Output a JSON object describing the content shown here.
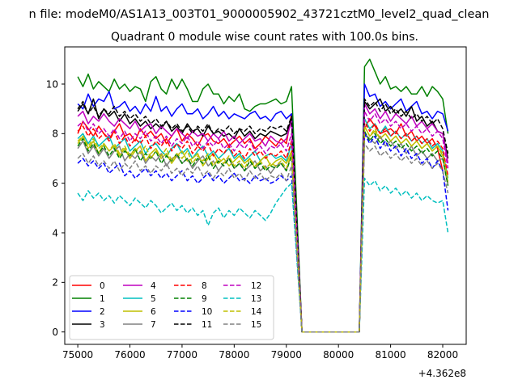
{
  "chart_data": {
    "type": "line",
    "suptitle": "n file: modeM0/AS1A13_003T01_9000005902_43721cztM0_level2_quad_clean",
    "title": "Quadrant 0 module wise count rates with 100.0s bins.",
    "xlabel": "",
    "ylabel": "",
    "x_offset_label": "+4.362e8",
    "xlim": [
      74750,
      82450
    ],
    "ylim": [
      -0.5,
      11.5
    ],
    "xticks": [
      75000,
      76000,
      77000,
      78000,
      79000,
      80000,
      81000,
      82000
    ],
    "xtick_labels": [
      "75000",
      "76000",
      "77000",
      "78000",
      "79000",
      "80000",
      "81000",
      "82000"
    ],
    "yticks": [
      0,
      2,
      4,
      6,
      8,
      10
    ],
    "ytick_labels": [
      "0",
      "2",
      "4",
      "6",
      "8",
      "10"
    ],
    "grid": false,
    "legend": {
      "placement": "lower-left",
      "columns": 4
    },
    "x_start": 75000,
    "x_step": 100,
    "gap": {
      "from": 79300,
      "to": 80400
    },
    "series": [
      {
        "name": "0",
        "color": "#ff0000",
        "dash": "solid",
        "pre": [
          8.0,
          8.5,
          8.2,
          7.9,
          8.3,
          8.0,
          7.8,
          8.1,
          8.4,
          7.9,
          8.0,
          7.7,
          8.2,
          7.9,
          8.1,
          7.8,
          8.0,
          7.6,
          7.9,
          8.2,
          7.7,
          8.0,
          7.8,
          7.5,
          7.9,
          8.0,
          7.7,
          7.6,
          7.8,
          7.5,
          7.7,
          7.9,
          7.6,
          7.8,
          7.4,
          7.6,
          7.9,
          7.7,
          7.5,
          7.8,
          7.6,
          8.8
        ],
        "post": [
          8.2,
          8.6,
          8.3,
          8.0,
          8.1,
          8.2,
          8.0,
          8.4,
          7.9,
          8.1,
          7.7,
          7.9,
          7.6,
          7.8,
          7.4,
          6.5
        ]
      },
      {
        "name": "1",
        "color": "#008000",
        "dash": "solid",
        "pre": [
          10.3,
          9.9,
          10.4,
          9.8,
          10.1,
          9.9,
          9.7,
          10.2,
          9.8,
          10.0,
          9.7,
          9.9,
          9.8,
          9.3,
          10.1,
          10.3,
          9.8,
          9.6,
          10.2,
          9.8,
          10.2,
          9.8,
          9.3,
          9.3,
          9.8,
          10.0,
          9.6,
          9.6,
          9.2,
          9.5,
          9.3,
          9.6,
          9.0,
          8.9,
          9.1,
          9.2,
          9.2,
          9.3,
          9.4,
          9.2,
          9.3,
          9.9
        ],
        "post": [
          10.7,
          11.0,
          10.5,
          10.0,
          10.3,
          9.8,
          9.9,
          9.7,
          9.9,
          9.6,
          9.6,
          9.9,
          9.5,
          9.9,
          9.7,
          9.4,
          8.0
        ]
      },
      {
        "name": "2",
        "color": "#0000ff",
        "dash": "solid",
        "pre": [
          9.2,
          9.0,
          9.6,
          9.1,
          9.4,
          9.3,
          9.7,
          9.0,
          9.1,
          9.3,
          8.9,
          9.1,
          8.8,
          9.2,
          8.9,
          9.5,
          8.9,
          9.1,
          8.7,
          9.0,
          9.2,
          8.8,
          8.8,
          9.0,
          8.6,
          8.8,
          9.1,
          8.7,
          8.9,
          8.6,
          8.8,
          8.7,
          8.6,
          8.8,
          8.9,
          8.6,
          8.7,
          8.5,
          8.8,
          8.9,
          8.6,
          8.8
        ],
        "post": [
          10.0,
          9.5,
          9.6,
          9.1,
          9.3,
          9.0,
          9.2,
          9.4,
          8.9,
          9.1,
          9.3,
          8.8,
          8.9,
          8.6,
          8.9,
          8.8,
          8.1
        ]
      },
      {
        "name": "3",
        "color": "#000000",
        "dash": "solid",
        "pre": [
          8.9,
          9.2,
          8.8,
          9.4,
          8.6,
          9.0,
          8.7,
          8.9,
          8.5,
          8.8,
          8.4,
          8.6,
          8.3,
          8.5,
          8.2,
          8.4,
          8.2,
          8.5,
          8.1,
          8.3,
          8.0,
          8.4,
          8.1,
          8.2,
          7.9,
          8.3,
          8.0,
          8.1,
          7.9,
          8.0,
          7.8,
          8.2,
          7.9,
          8.1,
          7.8,
          8.0,
          7.9,
          8.1,
          8.0,
          7.9,
          8.0,
          8.6
        ],
        "post": [
          9.3,
          9.0,
          9.2,
          9.4,
          8.9,
          9.1,
          8.8,
          9.0,
          8.7,
          9.1,
          8.5,
          8.7,
          8.3,
          8.5,
          8.1,
          8.0,
          7.0
        ]
      },
      {
        "name": "4",
        "color": "#bf00bf",
        "dash": "solid",
        "pre": [
          8.7,
          8.9,
          8.4,
          8.7,
          8.5,
          8.8,
          8.5,
          8.3,
          8.6,
          8.4,
          8.2,
          8.5,
          8.1,
          8.3,
          8.4,
          8.0,
          8.3,
          8.1,
          7.9,
          8.2,
          8.0,
          7.8,
          8.1,
          7.9,
          8.0,
          7.7,
          8.0,
          7.8,
          8.1,
          7.7,
          7.9,
          7.6,
          7.8,
          8.0,
          7.7,
          7.8,
          7.5,
          7.9,
          7.7,
          7.6,
          7.8,
          8.5
        ],
        "post": [
          9.2,
          8.8,
          9.0,
          8.6,
          8.9,
          8.5,
          8.8,
          8.6,
          8.4,
          8.7,
          8.3,
          8.5,
          8.2,
          8.4,
          8.1,
          8.0,
          6.8
        ]
      },
      {
        "name": "5",
        "color": "#00bfbf",
        "dash": "solid",
        "pre": [
          7.8,
          8.0,
          7.6,
          7.9,
          7.5,
          7.7,
          7.9,
          7.4,
          7.6,
          7.8,
          7.3,
          7.5,
          7.7,
          7.2,
          7.5,
          7.6,
          7.3,
          7.1,
          7.4,
          7.6,
          7.2,
          7.4,
          7.0,
          7.3,
          7.5,
          7.1,
          7.3,
          7.0,
          7.2,
          7.4,
          7.0,
          7.2,
          6.9,
          7.1,
          7.3,
          6.9,
          7.1,
          7.2,
          7.0,
          7.1,
          6.9,
          7.6
        ],
        "post": [
          8.6,
          8.2,
          8.4,
          8.0,
          8.3,
          7.9,
          8.1,
          7.8,
          8.0,
          7.7,
          7.9,
          7.6,
          7.8,
          7.4,
          7.6,
          7.3,
          6.2
        ]
      },
      {
        "name": "6",
        "color": "#bfbf00",
        "dash": "solid",
        "pre": [
          7.6,
          7.9,
          7.4,
          7.7,
          7.2,
          7.6,
          7.3,
          7.5,
          7.1,
          7.4,
          7.0,
          7.3,
          7.5,
          6.9,
          7.2,
          7.4,
          7.0,
          7.2,
          6.8,
          7.1,
          7.3,
          6.9,
          7.0,
          7.2,
          6.7,
          7.0,
          7.2,
          6.8,
          7.0,
          6.7,
          6.9,
          7.1,
          6.8,
          7.0,
          6.6,
          6.9,
          7.1,
          6.7,
          6.9,
          7.0,
          6.8,
          7.3
        ],
        "post": [
          8.3,
          7.9,
          8.1,
          7.8,
          8.0,
          7.7,
          7.9,
          7.6,
          7.8,
          7.5,
          7.7,
          7.4,
          7.6,
          7.3,
          7.5,
          7.1,
          6.0
        ]
      },
      {
        "name": "7",
        "color": "#808080",
        "dash": "solid",
        "pre": [
          7.4,
          7.7,
          7.2,
          7.5,
          7.1,
          7.4,
          7.0,
          7.3,
          7.5,
          6.9,
          7.2,
          7.0,
          7.3,
          6.8,
          7.1,
          6.9,
          7.2,
          6.7,
          7.0,
          7.1,
          6.8,
          7.0,
          6.6,
          6.9,
          7.1,
          6.7,
          6.9,
          6.5,
          6.8,
          7.0,
          6.6,
          6.8,
          6.5,
          6.7,
          6.9,
          6.5,
          6.7,
          6.4,
          6.7,
          6.8,
          6.5,
          7.2
        ],
        "post": [
          8.0,
          7.8,
          7.6,
          7.9,
          7.5,
          7.7,
          7.4,
          7.6,
          7.2,
          7.5,
          7.1,
          7.3,
          7.0,
          7.2,
          6.9,
          7.0,
          5.9
        ]
      },
      {
        "name": "8",
        "color": "#ff0000",
        "dash": "dashed",
        "pre": [
          8.1,
          8.3,
          7.9,
          8.2,
          7.8,
          8.0,
          7.7,
          8.1,
          7.6,
          7.9,
          7.5,
          7.8,
          7.6,
          7.9,
          7.4,
          7.7,
          7.5,
          7.8,
          7.3,
          7.6,
          7.4,
          7.7,
          7.2,
          7.5,
          7.3,
          7.6,
          7.1,
          7.4,
          7.2,
          7.5,
          7.1,
          7.3,
          7.0,
          7.4,
          7.1,
          7.3,
          7.0,
          7.2,
          7.1,
          7.3,
          7.0,
          7.7
        ],
        "post": [
          8.5,
          8.1,
          8.4,
          8.0,
          8.2,
          7.9,
          8.1,
          7.8,
          8.0,
          7.7,
          7.9,
          7.6,
          7.8,
          7.5,
          7.7,
          7.4,
          6.3
        ]
      },
      {
        "name": "9",
        "color": "#008000",
        "dash": "dashed",
        "pre": [
          7.5,
          7.8,
          7.3,
          7.6,
          7.2,
          7.5,
          7.1,
          7.4,
          7.0,
          7.3,
          7.1,
          7.4,
          6.9,
          7.2,
          7.0,
          7.3,
          6.8,
          7.1,
          6.9,
          7.2,
          6.8,
          7.0,
          6.7,
          7.0,
          6.8,
          7.1,
          6.6,
          6.9,
          6.7,
          7.0,
          6.6,
          6.8,
          6.5,
          6.9,
          6.6,
          6.8,
          6.5,
          6.7,
          6.6,
          6.8,
          6.5,
          7.1
        ],
        "post": [
          8.1,
          7.7,
          8.0,
          7.6,
          7.8,
          7.5,
          7.7,
          7.4,
          7.6,
          7.3,
          7.5,
          7.2,
          7.4,
          7.1,
          7.3,
          7.0,
          5.9
        ]
      },
      {
        "name": "10",
        "color": "#0000ff",
        "dash": "dashed",
        "pre": [
          6.8,
          7.0,
          6.7,
          6.9,
          6.6,
          6.8,
          6.4,
          6.6,
          6.8,
          6.3,
          6.5,
          6.2,
          6.4,
          6.6,
          6.3,
          6.5,
          6.2,
          6.4,
          6.1,
          6.3,
          6.5,
          6.1,
          6.3,
          6.0,
          6.2,
          6.4,
          6.1,
          6.3,
          6.0,
          6.2,
          6.4,
          6.1,
          6.2,
          6.0,
          6.3,
          6.1,
          6.2,
          6.0,
          6.1,
          6.3,
          6.1,
          6.3
        ],
        "post": [
          8.0,
          7.6,
          7.9,
          7.4,
          7.7,
          7.3,
          7.5,
          7.1,
          7.4,
          7.0,
          7.2,
          6.8,
          7.0,
          6.6,
          6.9,
          6.5,
          4.9
        ]
      },
      {
        "name": "11",
        "color": "#000000",
        "dash": "dashed",
        "pre": [
          9.0,
          9.3,
          8.8,
          9.1,
          8.7,
          9.0,
          8.8,
          9.1,
          8.7,
          8.9,
          8.6,
          8.8,
          8.5,
          8.7,
          8.4,
          8.6,
          8.3,
          8.5,
          8.2,
          8.4,
          8.1,
          8.3,
          8.0,
          8.3,
          8.1,
          8.4,
          8.0,
          8.2,
          8.1,
          8.3,
          8.0,
          8.2,
          8.1,
          8.3,
          8.0,
          8.2,
          8.1,
          8.3,
          8.2,
          8.3,
          8.1,
          8.7
        ],
        "post": [
          9.4,
          9.1,
          9.3,
          8.9,
          9.2,
          8.8,
          9.0,
          8.7,
          8.9,
          8.6,
          8.8,
          8.5,
          8.7,
          8.4,
          8.6,
          8.2,
          7.2
        ]
      },
      {
        "name": "12",
        "color": "#bf00bf",
        "dash": "dashed",
        "pre": [
          8.3,
          8.5,
          8.1,
          8.4,
          8.0,
          8.2,
          7.9,
          8.2,
          7.8,
          8.1,
          7.7,
          8.0,
          7.8,
          8.1,
          7.7,
          7.9,
          7.6,
          7.9,
          7.5,
          7.8,
          7.6,
          7.9,
          7.5,
          7.7,
          7.4,
          7.7,
          7.5,
          7.8,
          7.4,
          7.6,
          7.3,
          7.6,
          7.4,
          7.7,
          7.3,
          7.5,
          7.2,
          7.5,
          7.4,
          7.6,
          7.3,
          8.0
        ],
        "post": [
          8.9,
          8.5,
          8.8,
          8.4,
          8.6,
          8.3,
          8.5,
          8.2,
          8.4,
          8.1,
          8.3,
          8.0,
          8.2,
          7.9,
          8.1,
          7.8,
          6.6
        ]
      },
      {
        "name": "13",
        "color": "#00bfbf",
        "dash": "dashed",
        "pre": [
          5.6,
          5.3,
          5.7,
          5.4,
          5.6,
          5.3,
          5.5,
          5.2,
          5.5,
          5.3,
          5.1,
          5.4,
          5.2,
          5.0,
          5.3,
          5.1,
          4.8,
          5.0,
          5.2,
          4.9,
          5.1,
          4.8,
          5.0,
          4.7,
          4.9,
          4.3,
          4.8,
          5.0,
          4.6,
          4.9,
          4.7,
          5.0,
          4.8,
          4.6,
          4.9,
          4.7,
          4.5,
          4.8,
          5.2,
          5.5,
          5.8,
          6.0
        ],
        "post": [
          6.2,
          5.9,
          6.1,
          5.7,
          5.9,
          5.6,
          5.8,
          5.5,
          5.7,
          5.4,
          5.6,
          5.3,
          5.5,
          5.3,
          5.2,
          5.3,
          4.0
        ]
      },
      {
        "name": "14",
        "color": "#bfbf00",
        "dash": "dashed",
        "pre": [
          7.7,
          7.9,
          7.5,
          7.8,
          7.4,
          7.6,
          7.3,
          7.6,
          7.2,
          7.5,
          7.1,
          7.4,
          7.2,
          7.5,
          7.0,
          7.3,
          7.1,
          7.4,
          6.9,
          7.2,
          7.0,
          7.3,
          6.8,
          7.1,
          6.9,
          7.2,
          6.7,
          7.0,
          6.8,
          7.1,
          6.7,
          6.9,
          6.6,
          7.0,
          6.7,
          6.9,
          6.6,
          6.8,
          6.7,
          6.9,
          6.6,
          7.2
        ],
        "post": [
          8.3,
          7.9,
          8.2,
          7.8,
          8.0,
          7.7,
          7.9,
          7.6,
          7.8,
          7.5,
          7.7,
          7.4,
          7.6,
          7.3,
          7.5,
          7.2,
          6.1
        ]
      },
      {
        "name": "15",
        "color": "#808080",
        "dash": "dashed",
        "pre": [
          7.0,
          7.2,
          6.8,
          7.1,
          6.7,
          6.9,
          6.6,
          6.9,
          6.5,
          6.8,
          6.6,
          6.9,
          6.5,
          6.7,
          6.4,
          6.7,
          6.5,
          6.8,
          6.4,
          6.6,
          6.3,
          6.6,
          6.4,
          6.7,
          6.3,
          6.5,
          6.2,
          6.5,
          6.3,
          6.6,
          6.2,
          6.4,
          6.1,
          6.5,
          6.2,
          6.4,
          6.1,
          6.3,
          6.2,
          6.4,
          6.1,
          6.7
        ],
        "post": [
          7.6,
          7.3,
          7.5,
          7.1,
          7.3,
          7.0,
          7.2,
          6.9,
          7.1,
          6.8,
          7.0,
          6.7,
          6.9,
          6.6,
          6.8,
          6.5,
          5.6
        ]
      }
    ]
  }
}
